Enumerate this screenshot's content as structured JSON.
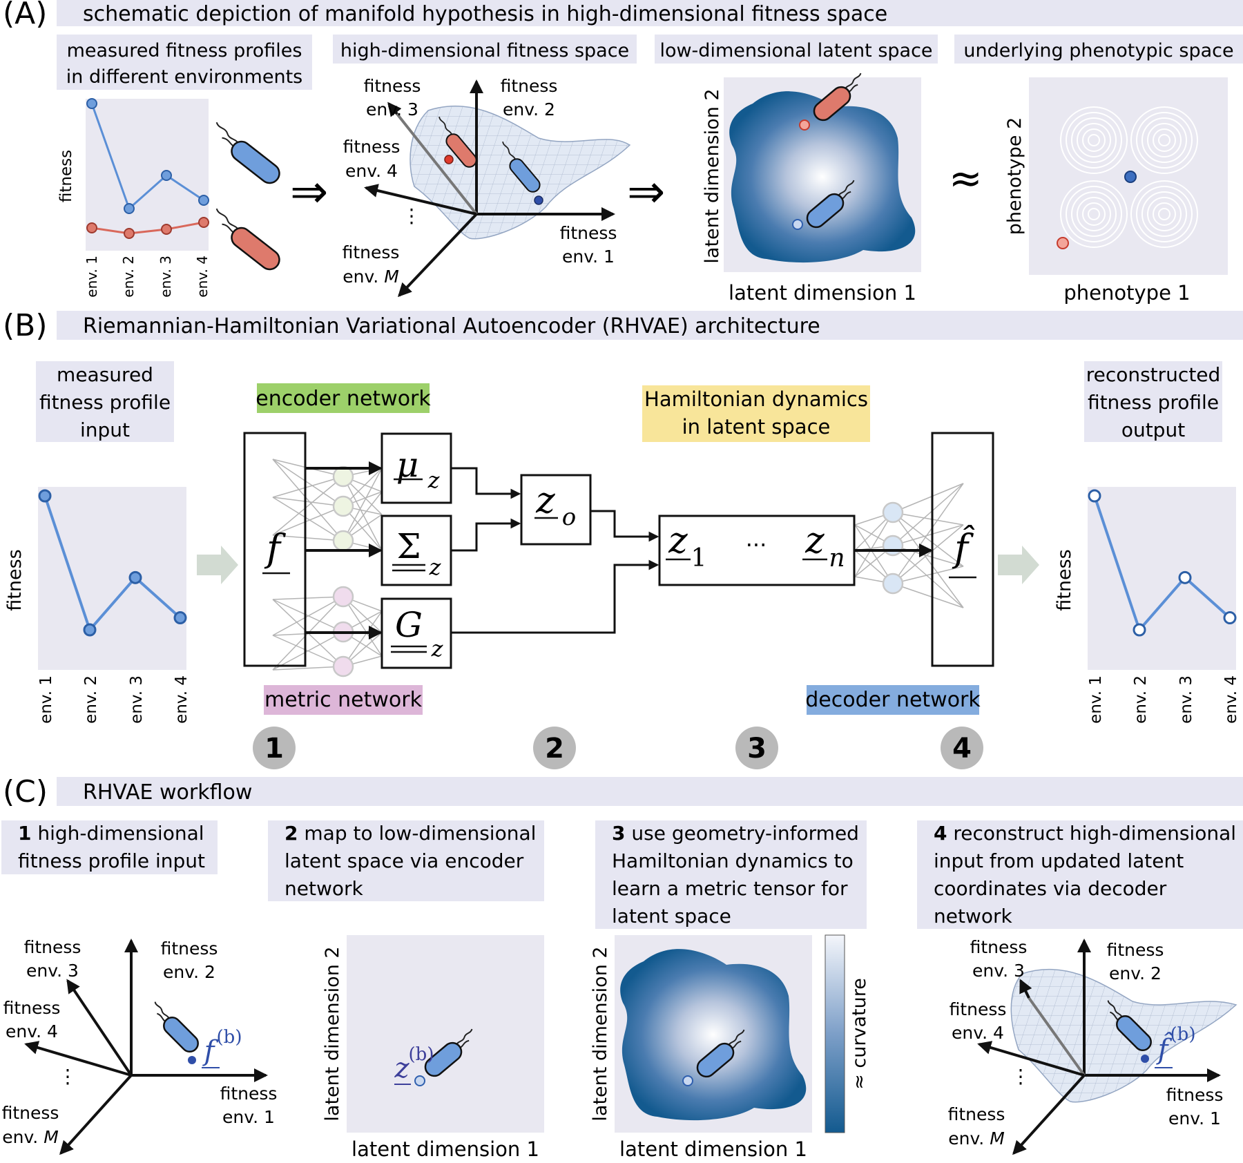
{
  "colors": {
    "label_box": "#e6e6f2",
    "plot_bg": "#e9e8f1",
    "blue": "#5b8fd6",
    "blue_dark": "#2c5fa6",
    "red": "#d9685b",
    "red_fill": "#de7a6c",
    "encoder_green": "#9dd06a",
    "hamiltonian_yellow": "#f8e59a",
    "metric_pink": "#ddb6d8",
    "decoder_blue": "#84acde",
    "latent_dark": "#145a8f",
    "arrow_gray": "#d2dbd2",
    "badge_gray": "#b9b9b9"
  },
  "A": {
    "tag": "(A)",
    "title": "schematic depiction of manifold hypothesis in high-dimensional fitness space",
    "box1": [
      "measured fitness profiles",
      "in different environments"
    ],
    "box2": "high-dimensional fitness space",
    "box3": "low-dimensional latent space",
    "box4": "underlying phenotypic space",
    "ylabel": "fitness",
    "envs": [
      "env. 1",
      "env. 2",
      "env. 3",
      "env. 4"
    ],
    "blue_values": [
      1.0,
      0.24,
      0.48,
      0.3
    ],
    "red_values": [
      0.1,
      0.06,
      0.09,
      0.14
    ],
    "axes": {
      "env3": [
        "fitness",
        "env. 3"
      ],
      "env2": [
        "fitness",
        "env. 2"
      ],
      "env4": [
        "fitness",
        "env. 4"
      ],
      "env1": [
        "fitness",
        "env. 1"
      ],
      "envM_line1": "fitness",
      "envM_prefix": "env. ",
      "envM_var": "M",
      "dots": "⋮"
    },
    "implies": "⇒",
    "approx": "≈",
    "latent_x": "latent dimension 1",
    "latent_y": "latent dimension 2",
    "pheno_x": "phenotype 1",
    "pheno_y": "phenotype 2"
  },
  "B": {
    "tag": "(B)",
    "title": "Riemannian-Hamiltonian Variational Autoencoder (RHVAE) architecture",
    "input_box": [
      "measured",
      "fitness profile",
      "input"
    ],
    "output_box": [
      "reconstructed",
      "fitness profile",
      "output"
    ],
    "ylabel": "fitness",
    "envs": [
      "env. 1",
      "env. 2",
      "env. 3",
      "env. 4"
    ],
    "values": [
      1.0,
      0.0,
      0.39,
      0.09
    ],
    "encoder_label": "encoder network",
    "hamiltonian_label": [
      "Hamiltonian dynamics",
      "in latent space"
    ],
    "metric_label": "metric network",
    "decoder_label": "decoder network",
    "sym_f": "f",
    "sym_fhat": "f̂",
    "sym_mu": "μ",
    "sym_sigma": "Σ",
    "sym_G": "G",
    "sym_z": "z",
    "sub_o": "o",
    "sub_1": "1",
    "sub_n": "n",
    "ellipsis": "···",
    "badges": [
      "1",
      "2",
      "3",
      "4"
    ]
  },
  "C": {
    "tag": "(C)",
    "title": "RHVAE workflow",
    "step1_num": "1",
    "step1": [
      " high-dimensional",
      "fitness profile input"
    ],
    "step2_num": "2",
    "step2": [
      " map to low-dimensional",
      "latent space via encoder",
      "network"
    ],
    "step3_num": "3",
    "step3": [
      " use geometry-informed",
      "Hamiltonian dynamics to",
      "learn a metric tensor for",
      "latent space"
    ],
    "step4_num": "4",
    "step4": [
      " reconstruct high-dimensional",
      "input from updated latent",
      "coordinates via decoder",
      "network"
    ],
    "axes": {
      "env3": [
        "fitness",
        "env. 3"
      ],
      "env2": [
        "fitness",
        "env. 2"
      ],
      "env4": [
        "fitness",
        "env. 4"
      ],
      "env1": [
        "fitness",
        "env. 1"
      ],
      "envM_line1": "fitness",
      "envM_prefix": "env. ",
      "envM_var": "M",
      "dots": "⋮"
    },
    "f_b": "f",
    "f_b_sup": "(b)",
    "z_b": "z",
    "z_b_sup": "(b)",
    "fhat_b": "f̂",
    "latent_x": "latent dimension 1",
    "latent_y": "latent dimension 2",
    "colorbar_label": "≈ curvature"
  }
}
